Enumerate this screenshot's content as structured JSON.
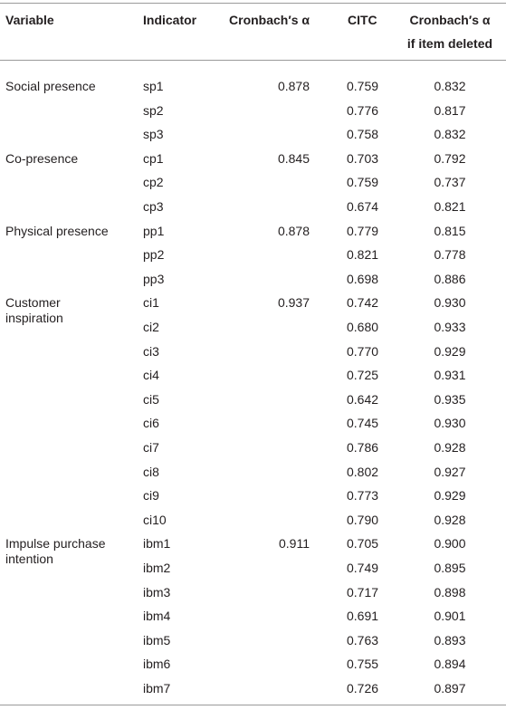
{
  "table": {
    "header": [
      "Variable",
      "Indicator",
      "Cronbach′s α",
      "CITC",
      [
        "Cronbach′s α",
        "if item deleted"
      ]
    ],
    "groups": [
      {
        "variable": "Social presence",
        "alpha": "0.878",
        "items": [
          [
            "sp1",
            "0.759",
            "0.832"
          ],
          [
            "sp2",
            "0.776",
            "0.817"
          ],
          [
            "sp3",
            "0.758",
            "0.832"
          ]
        ]
      },
      {
        "variable": "Co-presence",
        "alpha": "0.845",
        "items": [
          [
            "cp1",
            "0.703",
            "0.792"
          ],
          [
            "cp2",
            "0.759",
            "0.737"
          ],
          [
            "cp3",
            "0.674",
            "0.821"
          ]
        ]
      },
      {
        "variable": "Physical presence",
        "alpha": "0.878",
        "items": [
          [
            "pp1",
            "0.779",
            "0.815"
          ],
          [
            "pp2",
            "0.821",
            "0.778"
          ],
          [
            "pp3",
            "0.698",
            "0.886"
          ]
        ]
      },
      {
        "variable": "Customer inspiration",
        "alpha": "0.937",
        "items": [
          [
            "ci1",
            "0.742",
            "0.930"
          ],
          [
            "ci2",
            "0.680",
            "0.933"
          ],
          [
            "ci3",
            "0.770",
            "0.929"
          ],
          [
            "ci4",
            "0.725",
            "0.931"
          ],
          [
            "ci5",
            "0.642",
            "0.935"
          ],
          [
            "ci6",
            "0.745",
            "0.930"
          ],
          [
            "ci7",
            "0.786",
            "0.928"
          ],
          [
            "ci8",
            "0.802",
            "0.927"
          ],
          [
            "ci9",
            "0.773",
            "0.929"
          ],
          [
            "ci10",
            "0.790",
            "0.928"
          ]
        ]
      },
      {
        "variable": "Impulse purchase intention",
        "alpha": "0.911",
        "items": [
          [
            "ibm1",
            "0.705",
            "0.900"
          ],
          [
            "ibm2",
            "0.749",
            "0.895"
          ],
          [
            "ibm3",
            "0.717",
            "0.898"
          ],
          [
            "ibm4",
            "0.691",
            "0.901"
          ],
          [
            "ibm5",
            "0.763",
            "0.893"
          ],
          [
            "ibm6",
            "0.755",
            "0.894"
          ],
          [
            "ibm7",
            "0.726",
            "0.897"
          ]
        ]
      }
    ]
  }
}
